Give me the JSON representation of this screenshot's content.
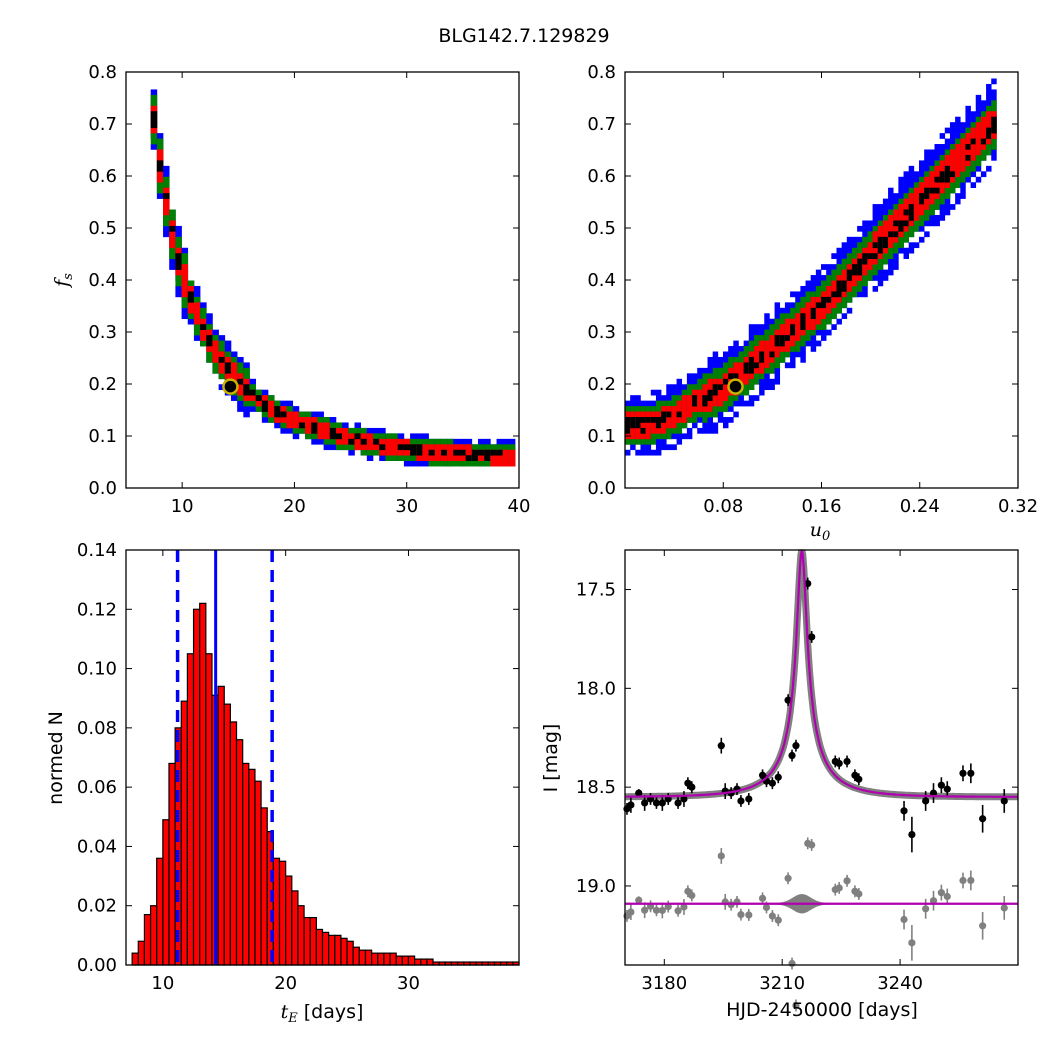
{
  "title": "BLG142.7.129829",
  "chart_data": [
    {
      "type": "heatmap",
      "panel": "top-left",
      "xlabel": "",
      "ylabel": "f_s",
      "xlim": [
        5,
        40
      ],
      "ylim": [
        0,
        0.8
      ],
      "xticks": [
        10,
        20,
        30,
        40
      ],
      "yticks": [
        0.0,
        0.1,
        0.2,
        0.3,
        0.4,
        0.5,
        0.6,
        0.7,
        0.8
      ],
      "color_levels": [
        "#0000ff",
        "#008000",
        "#ff0000",
        "#000000"
      ],
      "ridge": [
        [
          7.5,
          0.71
        ],
        [
          8,
          0.62
        ],
        [
          8.5,
          0.56
        ],
        [
          9,
          0.5
        ],
        [
          9.5,
          0.45
        ],
        [
          10,
          0.41
        ],
        [
          10.5,
          0.38
        ],
        [
          11,
          0.35
        ],
        [
          12,
          0.3
        ],
        [
          13,
          0.26
        ],
        [
          14,
          0.23
        ],
        [
          15,
          0.205
        ],
        [
          16,
          0.185
        ],
        [
          17,
          0.165
        ],
        [
          18,
          0.15
        ],
        [
          20,
          0.13
        ],
        [
          22,
          0.115
        ],
        [
          24,
          0.1
        ],
        [
          26,
          0.09
        ],
        [
          28,
          0.08
        ],
        [
          30,
          0.075
        ],
        [
          32,
          0.07
        ],
        [
          35,
          0.065
        ],
        [
          39,
          0.06
        ]
      ],
      "best_fit": {
        "x": 14.3,
        "y": 0.195,
        "color": "#c8b400"
      }
    },
    {
      "type": "heatmap",
      "panel": "top-right",
      "xlabel": "u_0",
      "ylabel": "",
      "xlim": [
        0,
        0.32
      ],
      "ylim": [
        0,
        0.8
      ],
      "xticks": [
        0.08,
        0.16,
        0.24,
        0.32
      ],
      "yticks": [
        0.0,
        0.1,
        0.2,
        0.3,
        0.4,
        0.5,
        0.6,
        0.7,
        0.8
      ],
      "color_levels": [
        "#0000ff",
        "#008000",
        "#ff0000",
        "#000000"
      ],
      "ridge": [
        [
          0.02,
          0.12
        ],
        [
          0.04,
          0.14
        ],
        [
          0.06,
          0.17
        ],
        [
          0.08,
          0.19
        ],
        [
          0.1,
          0.23
        ],
        [
          0.12,
          0.27
        ],
        [
          0.14,
          0.31
        ],
        [
          0.16,
          0.35
        ],
        [
          0.18,
          0.4
        ],
        [
          0.2,
          0.45
        ],
        [
          0.22,
          0.5
        ],
        [
          0.24,
          0.55
        ],
        [
          0.26,
          0.6
        ],
        [
          0.28,
          0.65
        ],
        [
          0.3,
          0.7
        ]
      ],
      "best_fit": {
        "x": 0.09,
        "y": 0.195,
        "color": "#c8b400"
      }
    },
    {
      "type": "bar",
      "panel": "bottom-left",
      "xlabel": "t_E [days]",
      "ylabel": "normed N",
      "xlim": [
        7,
        39
      ],
      "ylim": [
        0,
        0.14
      ],
      "xticks": [
        10,
        20,
        30
      ],
      "yticks": [
        0.0,
        0.02,
        0.04,
        0.06,
        0.08,
        0.1,
        0.12,
        0.14
      ],
      "bin_start": 7.5,
      "bin_width": 0.5,
      "values": [
        0.004,
        0.008,
        0.017,
        0.02,
        0.036,
        0.049,
        0.068,
        0.08,
        0.089,
        0.105,
        0.12,
        0.122,
        0.105,
        0.091,
        0.094,
        0.088,
        0.082,
        0.076,
        0.068,
        0.066,
        0.062,
        0.053,
        0.045,
        0.036,
        0.035,
        0.03,
        0.025,
        0.02,
        0.016,
        0.016,
        0.012,
        0.011,
        0.01,
        0.01,
        0.009,
        0.008,
        0.006,
        0.005,
        0.005,
        0.004,
        0.004,
        0.004,
        0.004,
        0.003,
        0.003,
        0.003,
        0.002,
        0.002,
        0.002,
        0.001,
        0.001,
        0.001,
        0.001,
        0.001,
        0.001,
        0.001,
        0.001,
        0.001,
        0.001,
        0.001,
        0.001,
        0.001,
        0.001
      ],
      "bar_color": "#ff0000",
      "median": 14.3,
      "bounds": [
        11.2,
        18.9
      ],
      "line_color": "#0000ff"
    },
    {
      "type": "line",
      "panel": "bottom-right",
      "xlabel": "HJD-2450000 [days]",
      "ylabel": "I [mag]",
      "xlim": [
        3170,
        3270
      ],
      "ylim": [
        19.4,
        17.3
      ],
      "xticks": [
        3180,
        3210,
        3240
      ],
      "yticks": [
        17.5,
        18.0,
        18.5,
        19.0
      ],
      "model": {
        "t0": 3215.0,
        "u0": 0.09,
        "tE": 14.3,
        "baseline": 18.55,
        "peak": 17.3,
        "color": "#b000b0",
        "band_color": "#808080"
      },
      "data_points": [
        {
          "x": 3170.5,
          "y": 18.61,
          "e": 0.03
        },
        {
          "x": 3171.5,
          "y": 18.59,
          "e": 0.04
        },
        {
          "x": 3173.5,
          "y": 18.53,
          "e": 0.02
        },
        {
          "x": 3175.0,
          "y": 18.58,
          "e": 0.04
        },
        {
          "x": 3176.5,
          "y": 18.56,
          "e": 0.03
        },
        {
          "x": 3178.0,
          "y": 18.58,
          "e": 0.03
        },
        {
          "x": 3179.5,
          "y": 18.58,
          "e": 0.04
        },
        {
          "x": 3181.0,
          "y": 18.56,
          "e": 0.03
        },
        {
          "x": 3183.5,
          "y": 18.58,
          "e": 0.03
        },
        {
          "x": 3185.0,
          "y": 18.56,
          "e": 0.04
        },
        {
          "x": 3186.0,
          "y": 18.48,
          "e": 0.03
        },
        {
          "x": 3187.0,
          "y": 18.5,
          "e": 0.03
        },
        {
          "x": 3194.5,
          "y": 18.29,
          "e": 0.04
        },
        {
          "x": 3195.5,
          "y": 18.52,
          "e": 0.04
        },
        {
          "x": 3197.0,
          "y": 18.53,
          "e": 0.03
        },
        {
          "x": 3198.5,
          "y": 18.51,
          "e": 0.03
        },
        {
          "x": 3199.5,
          "y": 18.57,
          "e": 0.03
        },
        {
          "x": 3201.5,
          "y": 18.56,
          "e": 0.03
        },
        {
          "x": 3205.0,
          "y": 18.44,
          "e": 0.03
        },
        {
          "x": 3206.0,
          "y": 18.47,
          "e": 0.03
        },
        {
          "x": 3207.5,
          "y": 18.48,
          "e": 0.03
        },
        {
          "x": 3209.0,
          "y": 18.45,
          "e": 0.03
        },
        {
          "x": 3211.5,
          "y": 18.06,
          "e": 0.03
        },
        {
          "x": 3212.5,
          "y": 18.34,
          "e": 0.03
        },
        {
          "x": 3213.5,
          "y": 18.29,
          "e": 0.03
        },
        {
          "x": 3216.5,
          "y": 17.47,
          "e": 0.03
        },
        {
          "x": 3217.5,
          "y": 17.74,
          "e": 0.03
        },
        {
          "x": 3223.5,
          "y": 18.37,
          "e": 0.03
        },
        {
          "x": 3224.5,
          "y": 18.38,
          "e": 0.03
        },
        {
          "x": 3226.5,
          "y": 18.37,
          "e": 0.03
        },
        {
          "x": 3228.5,
          "y": 18.44,
          "e": 0.03
        },
        {
          "x": 3229.5,
          "y": 18.46,
          "e": 0.03
        },
        {
          "x": 3241.0,
          "y": 18.62,
          "e": 0.05
        },
        {
          "x": 3243.0,
          "y": 18.74,
          "e": 0.09
        },
        {
          "x": 3246.5,
          "y": 18.57,
          "e": 0.05
        },
        {
          "x": 3248.5,
          "y": 18.53,
          "e": 0.05
        },
        {
          "x": 3250.5,
          "y": 18.49,
          "e": 0.04
        },
        {
          "x": 3252.0,
          "y": 18.51,
          "e": 0.04
        },
        {
          "x": 3256.0,
          "y": 18.43,
          "e": 0.04
        },
        {
          "x": 3258.0,
          "y": 18.43,
          "e": 0.05
        },
        {
          "x": 3261.0,
          "y": 18.66,
          "e": 0.07
        },
        {
          "x": 3266.5,
          "y": 18.57,
          "e": 0.06
        }
      ],
      "residual_offset": 19.09,
      "residual_color": "#808080"
    }
  ]
}
